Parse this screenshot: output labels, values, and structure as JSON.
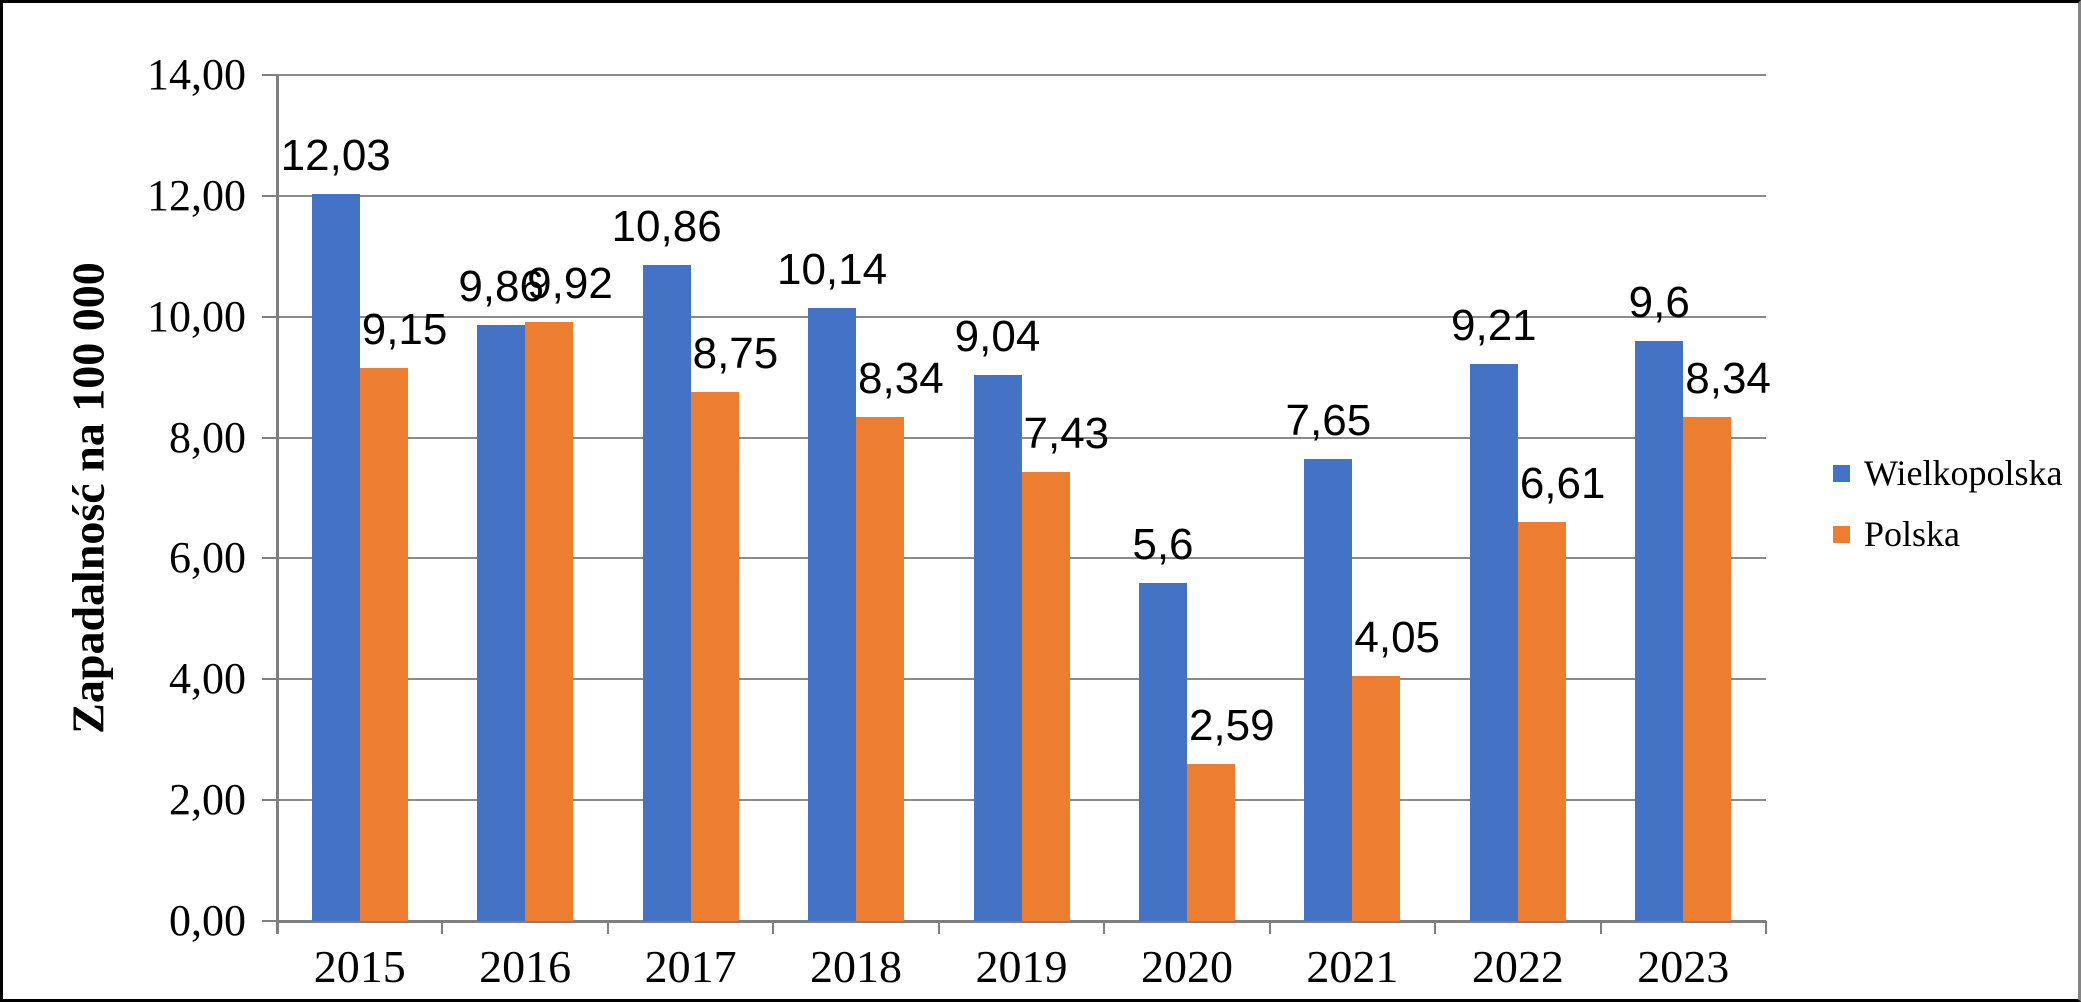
{
  "chart_data": {
    "type": "bar",
    "title": "",
    "xlabel": "",
    "ylabel": "Zapadalność na 100 000",
    "categories": [
      "2015",
      "2016",
      "2017",
      "2018",
      "2019",
      "2020",
      "2021",
      "2022",
      "2023"
    ],
    "series": [
      {
        "name": "Wielkopolska",
        "color": "#4472C4",
        "values": [
          12.03,
          9.86,
          10.86,
          10.14,
          9.04,
          5.6,
          7.65,
          9.21,
          9.6
        ],
        "labels": [
          "12,03",
          "9,86",
          "10,86",
          "10,14",
          "9,04",
          "5,6",
          "7,65",
          "9,21",
          "9,6"
        ]
      },
      {
        "name": "Polska",
        "color": "#ED7D31",
        "values": [
          9.15,
          9.92,
          8.75,
          8.34,
          7.43,
          2.59,
          4.05,
          6.61,
          8.34
        ],
        "labels": [
          "9,15",
          "9,92",
          "8,75",
          "8,34",
          "7,43",
          "2,59",
          "4,05",
          "6,61",
          "8,34"
        ]
      }
    ],
    "ylim": [
      0,
      14
    ],
    "ytick_step": 2,
    "ytick_labels": [
      "0,00",
      "2,00",
      "4,00",
      "6,00",
      "8,00",
      "10,00",
      "12,00",
      "14,00"
    ],
    "decimal_separator": ",",
    "grid": true,
    "legend_position": "right",
    "colors": {
      "gridline": "#8a8a8a",
      "axis": "#7f7f7f",
      "frame": "#000000",
      "background": "#ffffff",
      "text": "#000000"
    }
  }
}
